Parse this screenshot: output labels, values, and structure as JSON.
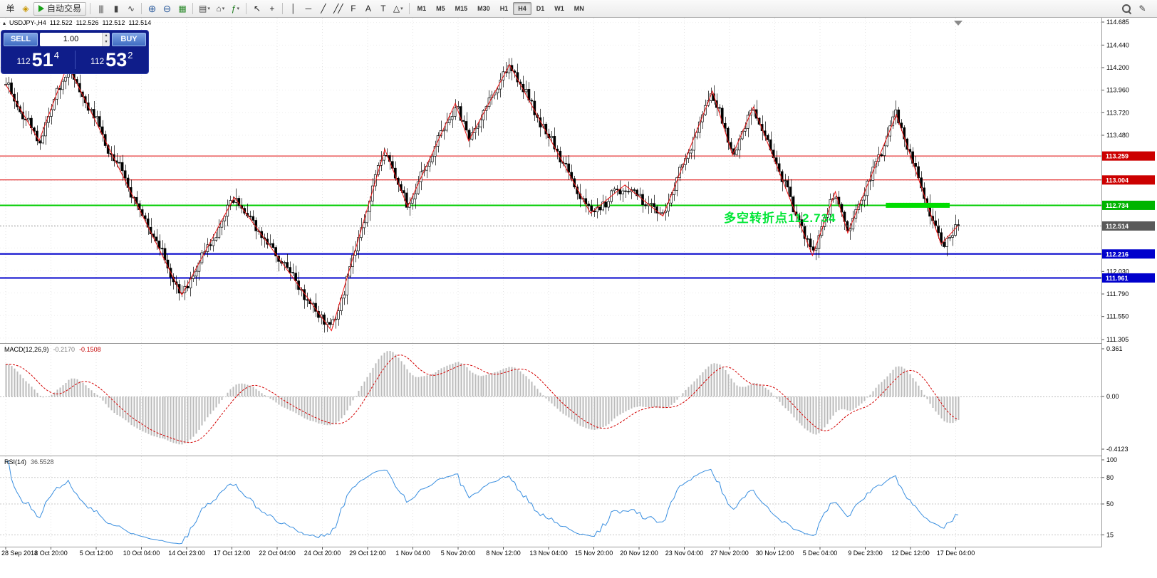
{
  "icons": {
    "panel_toggle": "▴",
    "spinner_up": "▴",
    "spinner_down": "▾"
  },
  "toolbar": {
    "items": [
      {
        "name": "new-order-button",
        "kind": "text",
        "label": "单"
      },
      {
        "name": "history-center-icon",
        "kind": "glyph",
        "glyph": "◈",
        "color": "#c89600"
      },
      {
        "name": "autotrading-button",
        "kind": "autotrade",
        "label": "自动交易"
      },
      {
        "name": "sep1",
        "kind": "sep"
      },
      {
        "name": "bar-chart-button",
        "kind": "glyph",
        "glyph": "|||",
        "color": "#444"
      },
      {
        "name": "candlestick-button",
        "kind": "glyph",
        "glyph": "▮",
        "color": "#444"
      },
      {
        "name": "line-chart-button",
        "kind": "glyph",
        "glyph": "∿",
        "color": "#444"
      },
      {
        "name": "sep2",
        "kind": "sep"
      },
      {
        "name": "zoom-in-button",
        "kind": "zoom",
        "sign": "+"
      },
      {
        "name": "zoom-out-button",
        "kind": "zoom",
        "sign": "−"
      },
      {
        "name": "tile-windows-button",
        "kind": "glyph",
        "glyph": "▦",
        "color": "#2e8b2e"
      },
      {
        "name": "sep3",
        "kind": "sep"
      },
      {
        "name": "new-chart-button",
        "kind": "glyph",
        "glyph": "▤",
        "color": "#444",
        "dropdown": true
      },
      {
        "name": "profiles-button",
        "kind": "glyph",
        "glyph": "⌂",
        "color": "#444",
        "dropdown": true
      },
      {
        "name": "indicators-button",
        "kind": "glyph",
        "glyph": "ƒ",
        "color": "#1a7a1a",
        "dropdown": true
      },
      {
        "name": "sep4",
        "kind": "sep"
      },
      {
        "name": "cursor-button",
        "kind": "glyph",
        "glyph": "↖",
        "color": "#222"
      },
      {
        "name": "crosshair-button",
        "kind": "glyph",
        "glyph": "+",
        "color": "#222"
      },
      {
        "name": "sep5",
        "kind": "sep"
      },
      {
        "name": "vertical-line-button",
        "kind": "glyph",
        "glyph": "│",
        "color": "#222"
      },
      {
        "name": "horizontal-line-button",
        "kind": "glyph",
        "glyph": "─",
        "color": "#222"
      },
      {
        "name": "trendline-button",
        "kind": "glyph",
        "glyph": "╱",
        "color": "#222"
      },
      {
        "name": "channel-button",
        "kind": "glyph",
        "glyph": "╱╱",
        "color": "#222"
      },
      {
        "name": "fibonacci-button",
        "kind": "glyph",
        "glyph": "F",
        "color": "#222"
      },
      {
        "name": "text-button",
        "kind": "glyph",
        "glyph": "A",
        "color": "#222"
      },
      {
        "name": "label-button",
        "kind": "glyph",
        "glyph": "T",
        "color": "#222"
      },
      {
        "name": "shapes-button",
        "kind": "glyph",
        "glyph": "△",
        "color": "#222",
        "dropdown": true
      },
      {
        "name": "sep6",
        "kind": "sep"
      }
    ],
    "timeframes": [
      "M1",
      "M5",
      "M15",
      "M30",
      "H1",
      "H4",
      "D1",
      "W1",
      "MN"
    ],
    "active_timeframe": "H4",
    "right_items": [
      {
        "name": "search-button",
        "kind": "search"
      },
      {
        "name": "journal-button",
        "kind": "glyph",
        "glyph": "✎",
        "color": "#444"
      }
    ]
  },
  "quote_bar": {
    "symbol_period": "USDJPY-,H4",
    "open": "112.522",
    "high": "112.526",
    "low": "112.512",
    "close": "112.514"
  },
  "trade_panel": {
    "sell_label": "SELL",
    "buy_label": "BUY",
    "volume": "1.00",
    "bid": {
      "prefix": "112",
      "main": "51",
      "sup": "4"
    },
    "ask": {
      "prefix": "112",
      "main": "53",
      "sup": "2"
    }
  },
  "chart_data": {
    "type": "candlestick",
    "symbol": "USDJPY-",
    "period": "H4",
    "ohlc_display": {
      "open": 112.522,
      "high": 112.526,
      "low": 112.512,
      "close": 112.514
    },
    "price_axis": {
      "min": 111.305,
      "max": 114.685,
      "ticks": [
        {
          "label": "114.685",
          "price": 114.685
        },
        {
          "label": "114.440",
          "price": 114.44
        },
        {
          "label": "114.200",
          "price": 114.2
        },
        {
          "label": "113.960",
          "price": 113.96
        },
        {
          "label": "113.720",
          "price": 113.72
        },
        {
          "label": "113.480",
          "price": 113.48
        },
        {
          "label": "112.030",
          "price": 112.03
        },
        {
          "label": "111.790",
          "price": 111.79
        },
        {
          "label": "111.550",
          "price": 111.55
        },
        {
          "label": "111.305",
          "price": 111.305
        }
      ],
      "badges": [
        {
          "label": "113.259",
          "price": 113.259,
          "color": "#cc0000"
        },
        {
          "label": "113.004",
          "price": 113.004,
          "color": "#cc0000"
        },
        {
          "label": "112.734",
          "price": 112.734,
          "color": "#00b400"
        },
        {
          "label": "112.514",
          "price": 112.514,
          "color": "#5a5a5a"
        },
        {
          "label": "112.216",
          "price": 112.216,
          "color": "#0000cc"
        },
        {
          "label": "111.961",
          "price": 111.961,
          "color": "#0000cc"
        }
      ]
    },
    "time_labels": [
      "28 Sep 2018",
      "2 Oct 20:00",
      "5 Oct 12:00",
      "10 Oct 04:00",
      "14 Oct 23:00",
      "17 Oct 12:00",
      "22 Oct 04:00",
      "24 Oct 20:00",
      "29 Oct 12:00",
      "1 Nov 04:00",
      "5 Nov 20:00",
      "8 Nov 12:00",
      "13 Nov 04:00",
      "15 Nov 20:00",
      "20 Nov 12:00",
      "23 Nov 04:00",
      "27 Nov 20:00",
      "30 Nov 12:00",
      "5 Dec 04:00",
      "9 Dec 23:00",
      "12 Dec 12:00",
      "17 Dec 04:00"
    ],
    "zigzag": [
      [
        0.0,
        114.02
      ],
      [
        0.035,
        113.42
      ],
      [
        0.065,
        114.23
      ],
      [
        0.185,
        111.78
      ],
      [
        0.24,
        112.82
      ],
      [
        0.342,
        111.4
      ],
      [
        0.398,
        113.33
      ],
      [
        0.422,
        112.72
      ],
      [
        0.472,
        113.82
      ],
      [
        0.486,
        113.42
      ],
      [
        0.529,
        114.23
      ],
      [
        0.614,
        112.65
      ],
      [
        0.65,
        112.95
      ],
      [
        0.69,
        112.62
      ],
      [
        0.742,
        113.95
      ],
      [
        0.763,
        113.27
      ],
      [
        0.785,
        113.78
      ],
      [
        0.847,
        112.2
      ],
      [
        0.871,
        112.88
      ],
      [
        0.884,
        112.44
      ],
      [
        0.935,
        113.7
      ],
      [
        0.982,
        112.32
      ],
      [
        1.0,
        112.52
      ]
    ],
    "hlines": [
      {
        "price": 113.259,
        "color": "#dd0000",
        "width": 1
      },
      {
        "price": 113.004,
        "color": "#dd0000",
        "width": 1
      },
      {
        "price": 112.734,
        "color": "#00cc00",
        "width": 2
      },
      {
        "price": 112.216,
        "color": "#0000cc",
        "width": 2
      },
      {
        "price": 111.961,
        "color": "#0000cc",
        "width": 2
      }
    ],
    "bid_line": {
      "price": 112.514,
      "color": "#9a9a9a"
    },
    "green_segment": {
      "price": 112.734,
      "f0": 0.924,
      "f1": 0.991,
      "color": "#00dd00",
      "width": 7
    },
    "annotation": {
      "text": "多空转折点112.734",
      "color": "#00e636"
    },
    "macd": {
      "name": "MACD(12,26,9)",
      "value": "-0.2170",
      "signal_value": "-0.1508",
      "axis": [
        {
          "label": "0.361",
          "pos": "top"
        },
        {
          "label": "0.00",
          "pos": "zero"
        },
        {
          "label": "-0.4123",
          "pos": "bottom"
        }
      ]
    },
    "rsi": {
      "name": "RSI(14)",
      "value": "36.5528",
      "levels": [
        {
          "label": "100",
          "value": 100
        },
        {
          "label": "80",
          "value": 80
        },
        {
          "label": "50",
          "value": 50
        },
        {
          "label": "15",
          "value": 15
        }
      ]
    }
  }
}
